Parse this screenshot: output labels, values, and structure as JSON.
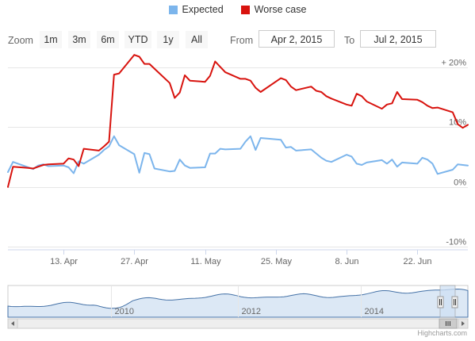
{
  "legend": [
    {
      "name": "Expected",
      "color": "#7cb5ec"
    },
    {
      "name": "Worse case",
      "color": "#d8130e"
    }
  ],
  "range_selector": {
    "zoom_label": "Zoom",
    "buttons": [
      "1m",
      "3m",
      "6m",
      "YTD",
      "1y",
      "All"
    ],
    "from_label": "From",
    "from_value": "Apr 2, 2015",
    "to_label": "To",
    "to_value": "Jul 2, 2015"
  },
  "credits": "Highcharts.com",
  "chart_data": {
    "type": "line",
    "title": "",
    "xlabel": "",
    "ylabel": "",
    "x_tick_labels": [
      "13. Apr",
      "27. Apr",
      "11. May",
      "25. May",
      "8. Jun",
      "22. Jun"
    ],
    "y_tick_labels": [
      "+ 20%",
      "10%",
      "0%",
      "-10%"
    ],
    "y_ticks": [
      20,
      10,
      0,
      -10
    ],
    "ylim": [
      -10.5,
      22
    ],
    "x_start": "2015-04-02",
    "x_end": "2015-07-02",
    "grid": true,
    "legend_position": "top-center",
    "x_dates": [
      "2015-04-02",
      "2015-04-03",
      "2015-04-06",
      "2015-04-07",
      "2015-04-08",
      "2015-04-09",
      "2015-04-10",
      "2015-04-13",
      "2015-04-14",
      "2015-04-15",
      "2015-04-16",
      "2015-04-17",
      "2015-04-20",
      "2015-04-21",
      "2015-04-22",
      "2015-04-23",
      "2015-04-24",
      "2015-04-27",
      "2015-04-28",
      "2015-04-29",
      "2015-04-30",
      "2015-05-01",
      "2015-05-04",
      "2015-05-05",
      "2015-05-06",
      "2015-05-07",
      "2015-05-08",
      "2015-05-11",
      "2015-05-12",
      "2015-05-13",
      "2015-05-14",
      "2015-05-15",
      "2015-05-18",
      "2015-05-19",
      "2015-05-20",
      "2015-05-21",
      "2015-05-22",
      "2015-05-26",
      "2015-05-27",
      "2015-05-28",
      "2015-05-29",
      "2015-06-01",
      "2015-06-02",
      "2015-06-03",
      "2015-06-04",
      "2015-06-05",
      "2015-06-08",
      "2015-06-09",
      "2015-06-10",
      "2015-06-11",
      "2015-06-12",
      "2015-06-15",
      "2015-06-16",
      "2015-06-17",
      "2015-06-18",
      "2015-06-19",
      "2015-06-22",
      "2015-06-23",
      "2015-06-24",
      "2015-06-25",
      "2015-06-26",
      "2015-06-29",
      "2015-06-30",
      "2015-07-01",
      "2015-07-02"
    ],
    "series": [
      {
        "name": "Expected",
        "color": "#7cb5ec",
        "values": [
          2.5,
          4.2,
          3.3,
          3.0,
          3.6,
          3.8,
          3.5,
          3.6,
          3.3,
          2.3,
          4.3,
          3.9,
          5.4,
          6.2,
          6.8,
          8.5,
          7.0,
          5.5,
          2.4,
          5.7,
          5.5,
          3.1,
          2.6,
          2.7,
          4.6,
          3.6,
          3.2,
          3.3,
          5.6,
          5.6,
          6.4,
          6.3,
          6.4,
          7.6,
          8.5,
          6.2,
          8.2,
          7.9,
          6.6,
          6.7,
          6.1,
          6.3,
          5.6,
          4.9,
          4.4,
          4.2,
          5.4,
          5.1,
          3.9,
          3.7,
          4.1,
          4.5,
          3.9,
          4.6,
          3.4,
          4.1,
          3.9,
          4.9,
          4.6,
          3.9,
          2.2,
          2.9,
          3.8,
          3.7,
          3.6
        ]
      },
      {
        "name": "Worse case",
        "color": "#d8130e",
        "values": [
          0.0,
          3.4,
          3.2,
          3.1,
          3.4,
          3.7,
          3.8,
          3.9,
          4.8,
          4.6,
          3.5,
          6.4,
          6.1,
          6.8,
          7.6,
          18.8,
          19.0,
          22.1,
          21.8,
          20.6,
          20.6,
          19.8,
          17.4,
          14.9,
          15.8,
          18.7,
          17.8,
          17.6,
          18.6,
          21.0,
          20.1,
          19.2,
          18.1,
          18.1,
          17.8,
          16.6,
          15.9,
          18.2,
          17.9,
          16.8,
          16.2,
          16.8,
          16.1,
          15.9,
          15.2,
          14.8,
          13.8,
          13.6,
          15.6,
          15.2,
          14.3,
          13.1,
          13.8,
          14.0,
          15.9,
          14.7,
          14.6,
          14.2,
          13.6,
          13.2,
          13.3,
          12.5,
          10.5,
          9.9,
          10.4
        ]
      }
    ]
  },
  "navigator": {
    "x_tick_labels": [
      "2010",
      "2012",
      "2014"
    ]
  }
}
